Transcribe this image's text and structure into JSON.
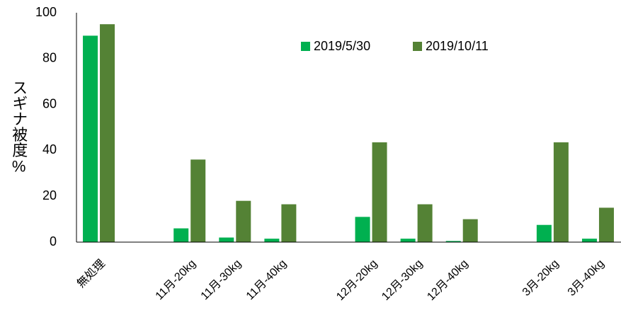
{
  "chart_data": {
    "type": "bar",
    "ylabel": "スギナ被度%",
    "categories": [
      "無処理",
      null,
      "11月-20kg",
      "11月-30kg",
      "11月-40kg",
      null,
      "12月-20kg",
      "12月-30kg",
      "12月-40kg",
      null,
      "3月-20kg",
      "3月-40kg"
    ],
    "series": [
      {
        "name": "2019/5/30",
        "color": "#00b050",
        "values": [
          90,
          null,
          6,
          2,
          1.5,
          null,
          11,
          1.5,
          0.5,
          null,
          7.5,
          1.5
        ]
      },
      {
        "name": "2019/10/11",
        "color": "#548235",
        "values": [
          95,
          null,
          36,
          18,
          16.5,
          null,
          43.5,
          16.5,
          10,
          null,
          43.5,
          15
        ]
      }
    ],
    "ylim": [
      0,
      100
    ],
    "yticks": [
      0,
      20,
      40,
      60,
      80,
      100
    ],
    "grid": false
  }
}
